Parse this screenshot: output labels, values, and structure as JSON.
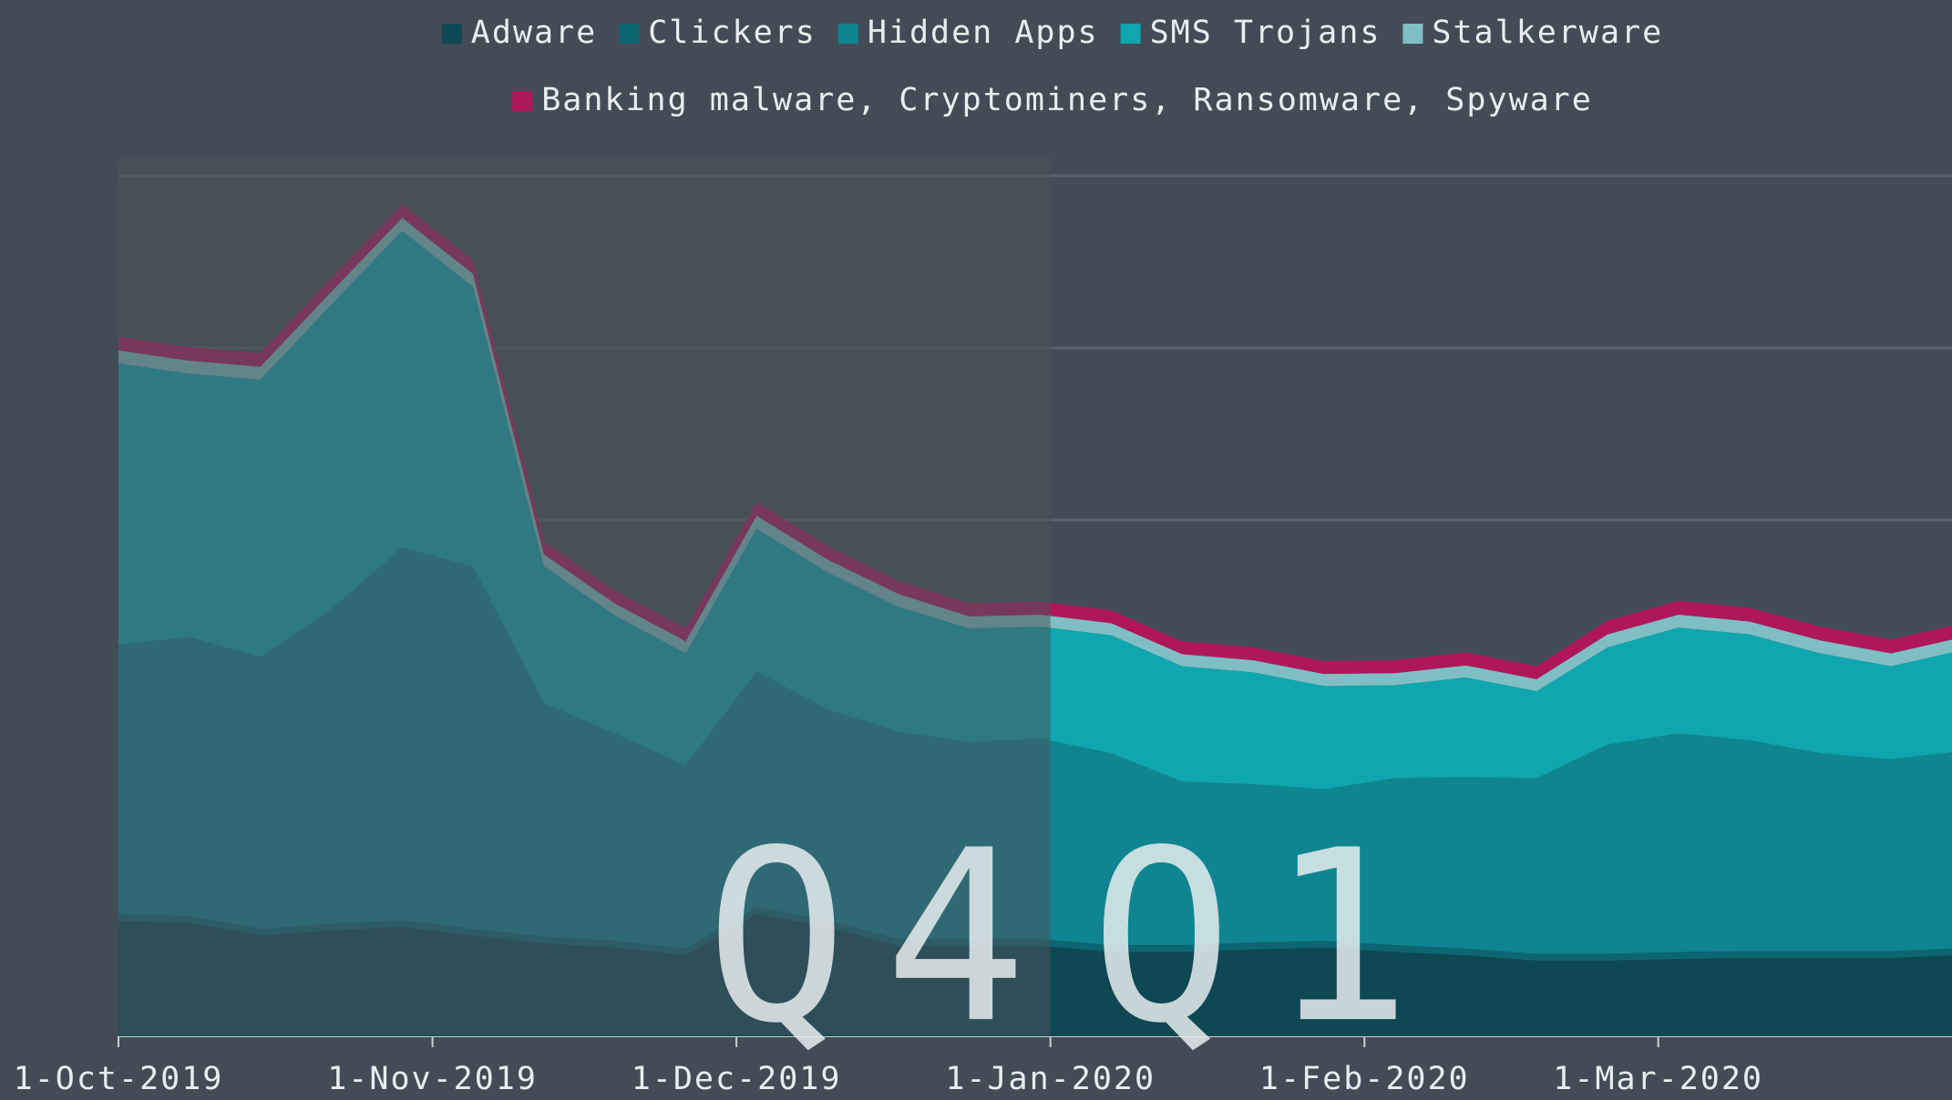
{
  "chart_data": {
    "type": "stacked_area",
    "x": [
      "2019-10-01",
      "2019-10-08",
      "2019-10-15",
      "2019-10-22",
      "2019-10-29",
      "2019-11-05",
      "2019-11-12",
      "2019-11-19",
      "2019-11-26",
      "2019-12-03",
      "2019-12-10",
      "2019-12-17",
      "2019-12-24",
      "2019-12-31",
      "2020-01-07",
      "2020-01-14",
      "2020-01-21",
      "2020-01-28",
      "2020-02-04",
      "2020-02-11",
      "2020-02-18",
      "2020-02-25",
      "2020-03-03",
      "2020-03-10",
      "2020-03-17",
      "2020-03-24",
      "2020-03-30"
    ],
    "series": [
      {
        "name": "Adware",
        "color": "#0d4853",
        "values": [
          13.4,
          13.2,
          11.7,
          12.3,
          12.7,
          11.7,
          10.8,
          10.3,
          9.4,
          14.2,
          12.7,
          10.5,
          10.5,
          10.5,
          9.8,
          9.8,
          10.1,
          10.3,
          9.8,
          9.4,
          8.8,
          8.8,
          9.0,
          9.1,
          9.1,
          9.1,
          9.4
        ]
      },
      {
        "name": "Clickers",
        "color": "#0b6672",
        "values": [
          0.8,
          0.8,
          0.8,
          0.8,
          0.8,
          0.8,
          0.8,
          0.8,
          0.8,
          0.8,
          0.8,
          0.8,
          0.8,
          0.8,
          0.8,
          0.8,
          0.8,
          0.8,
          0.8,
          0.8,
          0.8,
          0.8,
          0.8,
          0.8,
          0.8,
          0.8,
          0.8
        ]
      },
      {
        "name": "Hidden Apps",
        "color": "#0e8590",
        "values": [
          31.3,
          32.4,
          31.6,
          36.5,
          43.3,
          42.1,
          27.1,
          24.1,
          21.3,
          27.4,
          24.5,
          24.1,
          22.9,
          23.3,
          22.3,
          19.0,
          18.4,
          17.6,
          19.4,
          19.9,
          20.4,
          24.3,
          25.4,
          24.5,
          23.0,
          22.3,
          22.8
        ]
      },
      {
        "name": "SMS Trojans",
        "color": "#0fa6b0",
        "values": [
          32.7,
          30.6,
          32.2,
          35.4,
          36.8,
          32.5,
          15.9,
          13.7,
          13.0,
          16.6,
          15.9,
          14.5,
          13.2,
          13.0,
          13.7,
          13.4,
          13.0,
          12.0,
          10.8,
          11.6,
          10.1,
          11.3,
          12.3,
          12.3,
          11.6,
          10.8,
          11.6
        ]
      },
      {
        "name": "Stalkerware",
        "color": "#7fbfc4",
        "values": [
          1.5,
          1.5,
          1.5,
          1.5,
          1.5,
          1.5,
          1.4,
          1.4,
          1.4,
          1.5,
          1.5,
          1.5,
          1.4,
          1.4,
          1.4,
          1.4,
          1.4,
          1.4,
          1.4,
          1.4,
          1.4,
          1.5,
          1.5,
          1.5,
          1.5,
          1.5,
          1.5
        ]
      },
      {
        "name": "Banking malware, Cryptominers, Ransomware, Spyware",
        "color": "#b0175a",
        "values": [
          1.6,
          1.6,
          1.6,
          1.6,
          1.6,
          1.6,
          1.5,
          1.5,
          1.5,
          1.6,
          1.6,
          1.5,
          1.5,
          1.5,
          1.5,
          1.5,
          1.5,
          1.5,
          1.5,
          1.5,
          1.5,
          1.6,
          1.6,
          1.6,
          1.6,
          1.6,
          1.6
        ]
      }
    ],
    "xlim": [
      "2019-10-01",
      "2020-03-30"
    ],
    "xticks": [
      {
        "value": "2019-10-01",
        "label": "1-Oct-2019"
      },
      {
        "value": "2019-11-01",
        "label": "1-Nov-2019"
      },
      {
        "value": "2019-12-01",
        "label": "1-Dec-2019"
      },
      {
        "value": "2020-01-01",
        "label": "1-Jan-2020"
      },
      {
        "value": "2020-02-01",
        "label": "1-Feb-2020"
      },
      {
        "value": "2020-03-01",
        "label": "1-Mar-2020"
      }
    ],
    "ylim": [
      0,
      100
    ],
    "yticks": [
      0,
      20,
      40,
      60,
      80,
      100
    ],
    "grid": true,
    "legend": "top",
    "annotations": [
      {
        "text": "Q4",
        "x": "2019-12-01"
      },
      {
        "text": "Q1",
        "x": "2020-01-01"
      }
    ]
  }
}
